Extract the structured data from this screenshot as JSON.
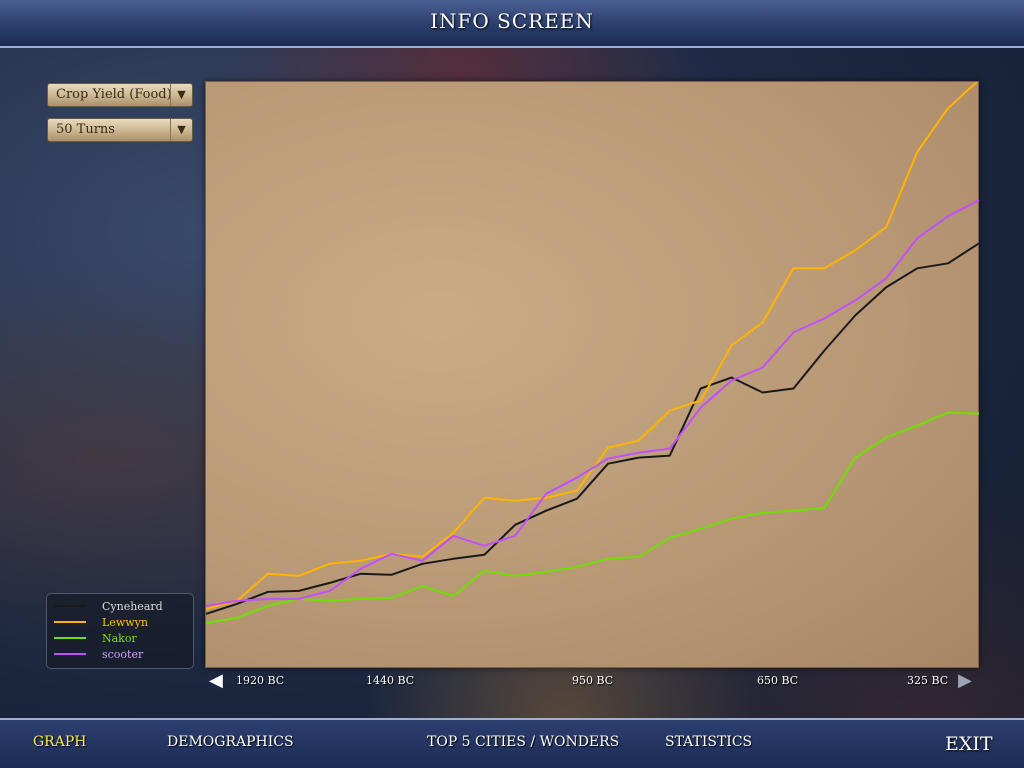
{
  "header": {
    "title": "INFO SCREEN"
  },
  "controls": {
    "metric": "Crop Yield (Food)",
    "range": "50 Turns"
  },
  "tabs": [
    {
      "label": "GRAPH",
      "active": true
    },
    {
      "label": "DEMOGRAPHICS"
    },
    {
      "label": "TOP 5 CITIES / WONDERS"
    },
    {
      "label": "STATISTICS"
    }
  ],
  "exit_label": "EXIT",
  "chart_data": {
    "type": "line",
    "title": "",
    "xlabel": "",
    "ylabel": "",
    "x_tick_labels": [
      "1920 BC",
      "1440 BC",
      "950 BC",
      "650 BC",
      "325 BC"
    ],
    "x": [
      0,
      2,
      4,
      6,
      8,
      10,
      12,
      14,
      16,
      18,
      20,
      22,
      24,
      26,
      28,
      30,
      32,
      34,
      36,
      38,
      40,
      42,
      44,
      46,
      48,
      50
    ],
    "ylim": [
      0,
      586
    ],
    "grid": false,
    "legend_placement": "bottom-left (outside)",
    "series": [
      {
        "name": "Cyneheard",
        "color": "#1a1a1a",
        "values": [
          55,
          65,
          77,
          78,
          86,
          95,
          94,
          105,
          110,
          114,
          144,
          158,
          170,
          205,
          211,
          213,
          280,
          291,
          276,
          280,
          318,
          353,
          381,
          400,
          405,
          425
        ]
      },
      {
        "name": "Lewwyn",
        "color": "#ffb400",
        "values": [
          60,
          68,
          95,
          93,
          105,
          108,
          115,
          112,
          136,
          171,
          168,
          171,
          178,
          221,
          228,
          258,
          268,
          323,
          346,
          400,
          400,
          418,
          441,
          516,
          560,
          588
        ]
      },
      {
        "name": "Nakor",
        "color": "#6ee000",
        "values": [
          46,
          51,
          63,
          70,
          68,
          70,
          71,
          83,
          73,
          98,
          93,
          97,
          102,
          110,
          112,
          131,
          140,
          150,
          156,
          158,
          161,
          211,
          231,
          243,
          256,
          255
        ]
      },
      {
        "name": "scooter",
        "color": "#c050ff",
        "values": [
          63,
          68,
          70,
          70,
          78,
          100,
          115,
          108,
          133,
          123,
          133,
          175,
          191,
          210,
          216,
          220,
          261,
          288,
          301,
          336,
          350,
          368,
          390,
          430,
          452,
          468
        ]
      }
    ]
  }
}
